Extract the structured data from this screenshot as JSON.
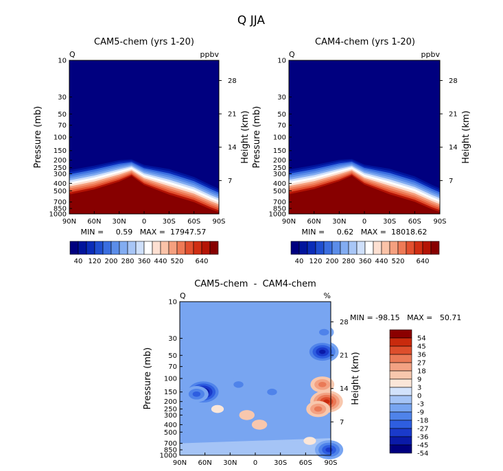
{
  "figure_title": "Q JJA",
  "palette_abs": [
    "#00007f",
    "#00149c",
    "#0a2cb8",
    "#1f4ed0",
    "#3a6ee0",
    "#5b8de9",
    "#82acf1",
    "#a8c6f6",
    "#cfe0fb",
    "#ffffff",
    "#fde0d2",
    "#fac3a8",
    "#f5a07f",
    "#ee7a56",
    "#e2502f",
    "#d02e13",
    "#b41405",
    "#870000"
  ],
  "palette_diff": [
    "#00007f",
    "#0a1aa8",
    "#1a3acb",
    "#2e5ee0",
    "#4f83ea",
    "#78a5f1",
    "#a5c4f6",
    "#d2e2fb",
    "#fbe6d8",
    "#f8c7ad",
    "#f3a283",
    "#ea7a57",
    "#dd4e2c",
    "#c92a0d",
    "#8b0000"
  ],
  "chart_data": [
    {
      "type": "heatmap",
      "title": "CAM5-chem (yrs 1-20)",
      "left_label": "Q",
      "right_label": "ppbv",
      "ylabel": "Pressure (mb)",
      "ylabel_right": "Height (km)",
      "x_ticks": [
        "90N",
        "60N",
        "30N",
        "0",
        "30S",
        "60S",
        "90S"
      ],
      "y_ticks": [
        "10",
        "30",
        "50",
        "70",
        "100",
        "150",
        "200",
        "250",
        "300",
        "400",
        "500",
        "700",
        "850",
        "1000"
      ],
      "height_ticks": [
        "28",
        "21",
        "14",
        "7"
      ],
      "stats": "MIN =     0.59   MAX =  17947.57",
      "colorbar_labels": [
        "40",
        "120",
        "200",
        "280",
        "360",
        "440",
        "520",
        "640"
      ],
      "x": [
        "90N",
        "60N",
        "30N",
        "15N",
        "0",
        "30S",
        "60S",
        "80S",
        "90S"
      ],
      "boundary_pressure_mb": [
        270,
        235,
        200,
        195,
        230,
        260,
        330,
        420,
        470
      ],
      "high_pressure_mb": [
        560,
        480,
        380,
        320,
        420,
        560,
        700,
        870,
        950
      ]
    },
    {
      "type": "heatmap",
      "title": "CAM4-chem (yrs 1-20)",
      "left_label": "Q",
      "right_label": "ppbv",
      "ylabel": "Pressure (mb)",
      "ylabel_right": "Height (km)",
      "x_ticks": [
        "90N",
        "60N",
        "30N",
        "0",
        "30S",
        "60S",
        "90S"
      ],
      "y_ticks": [
        "10",
        "30",
        "50",
        "70",
        "100",
        "150",
        "200",
        "250",
        "300",
        "400",
        "500",
        "700",
        "850",
        "1000"
      ],
      "height_ticks": [
        "28",
        "21",
        "14",
        "7"
      ],
      "stats": "MIN =     0.62   MAX =  18018.62",
      "colorbar_labels": [
        "40",
        "120",
        "200",
        "280",
        "360",
        "440",
        "520",
        "640"
      ],
      "x": [
        "90N",
        "60N",
        "30N",
        "15N",
        "0",
        "30S",
        "60S",
        "80S",
        "90S"
      ],
      "boundary_pressure_mb": [
        265,
        232,
        198,
        193,
        228,
        258,
        325,
        415,
        465
      ],
      "high_pressure_mb": [
        555,
        475,
        375,
        318,
        415,
        555,
        695,
        865,
        945
      ]
    },
    {
      "type": "heatmap",
      "title": "CAM5-chem  -  CAM4-chem",
      "left_label": "Q",
      "right_label": "%",
      "ylabel": "Pressure (mb)",
      "ylabel_right": "Height (km)",
      "x_ticks": [
        "90N",
        "60N",
        "30N",
        "0",
        "30S",
        "60S",
        "90S"
      ],
      "y_ticks": [
        "10",
        "30",
        "50",
        "70",
        "100",
        "150",
        "200",
        "250",
        "300",
        "400",
        "500",
        "700",
        "850",
        "1000"
      ],
      "height_ticks": [
        "28",
        "21",
        "14",
        "7"
      ],
      "stats": "MIN = -98.15   MAX =   50.71",
      "colorbar_labels": [
        "54",
        "45",
        "36",
        "27",
        "18",
        "9",
        "3",
        "0",
        "-3",
        "-9",
        "-18",
        "-27",
        "-36",
        "-45",
        "-54"
      ],
      "background_percent": -9,
      "features": [
        {
          "lat": 62,
          "pressure_mb": 150,
          "percent": -54
        },
        {
          "lat": 70,
          "pressure_mb": 160,
          "percent": -27
        },
        {
          "lat": 20,
          "pressure_mb": 120,
          "percent": -18
        },
        {
          "lat": -20,
          "pressure_mb": 150,
          "percent": -18
        },
        {
          "lat": -80,
          "pressure_mb": 45,
          "percent": -45
        },
        {
          "lat": -82,
          "pressure_mb": 25,
          "percent": -18
        },
        {
          "lat": 10,
          "pressure_mb": 300,
          "percent": 9
        },
        {
          "lat": -5,
          "pressure_mb": 400,
          "percent": 9
        },
        {
          "lat": 45,
          "pressure_mb": 250,
          "percent": 3
        },
        {
          "lat": -65,
          "pressure_mb": 650,
          "percent": 3
        },
        {
          "lat": -85,
          "pressure_mb": 200,
          "percent": 45
        },
        {
          "lat": -80,
          "pressure_mb": 120,
          "percent": 27
        },
        {
          "lat": -75,
          "pressure_mb": 250,
          "percent": 27
        },
        {
          "lat": -88,
          "pressure_mb": 850,
          "percent": -36
        }
      ]
    }
  ]
}
